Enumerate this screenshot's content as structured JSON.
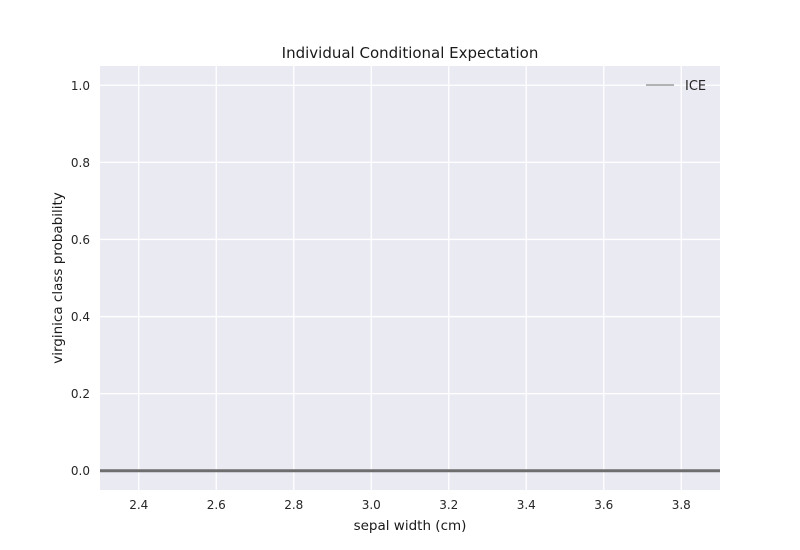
{
  "chart_data": {
    "type": "line",
    "title": "Individual Conditional Expectation",
    "xlabel": "sepal width (cm)",
    "ylabel": "virginica class probability",
    "xlim": [
      2.3,
      3.9
    ],
    "ylim": [
      -0.05,
      1.05
    ],
    "xticks": [
      2.4,
      2.6,
      2.8,
      3.0,
      3.2,
      3.4,
      3.6,
      3.8
    ],
    "xtick_labels": [
      "2.4",
      "2.6",
      "2.8",
      "3.0",
      "3.2",
      "3.4",
      "3.6",
      "3.8"
    ],
    "yticks": [
      0.0,
      0.2,
      0.4,
      0.6,
      0.8,
      1.0
    ],
    "ytick_labels": [
      "0.0",
      "0.2",
      "0.4",
      "0.6",
      "0.8",
      "1.0"
    ],
    "grid": true,
    "legend_position": "top-right",
    "series": [
      {
        "name": "ICE",
        "color": "#6e6e6e",
        "legend_color": "#b3b3b3",
        "x": [
          2.3,
          3.9
        ],
        "y": [
          0.0,
          0.0
        ]
      }
    ],
    "colors": {
      "plot_background": "#eaeaf2",
      "grid": "#ffffff"
    }
  }
}
